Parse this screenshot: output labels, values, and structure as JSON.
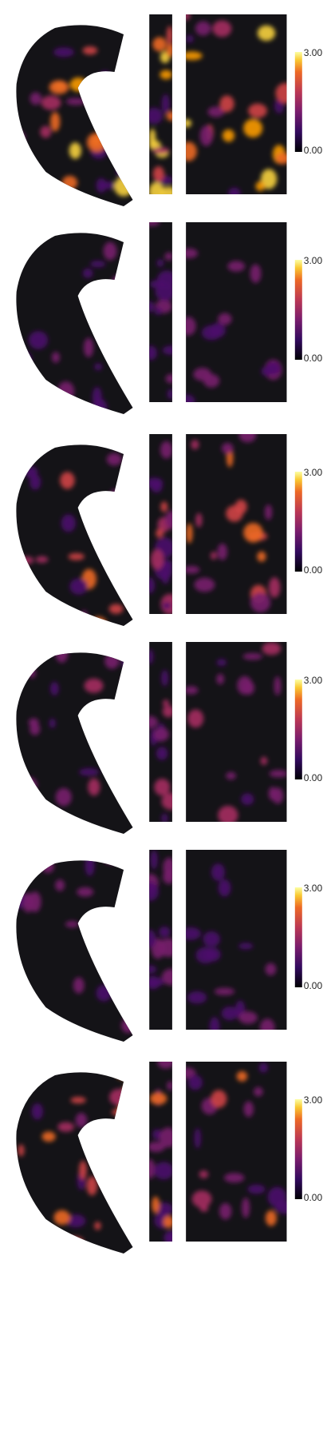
{
  "panels": [
    {
      "colorbar": {
        "max_label": "3.00",
        "min_label": "0.00"
      }
    },
    {
      "colorbar": {
        "max_label": "3.00",
        "min_label": "0.00"
      }
    },
    {
      "colorbar": {
        "max_label": "3.00",
        "min_label": "0.00"
      }
    },
    {
      "colorbar": {
        "max_label": "3.00",
        "min_label": "0.00"
      }
    },
    {
      "colorbar": {
        "max_label": "3.00",
        "min_label": "0.00"
      }
    },
    {
      "colorbar": {
        "max_label": "3.00",
        "min_label": "0.00"
      }
    }
  ]
}
